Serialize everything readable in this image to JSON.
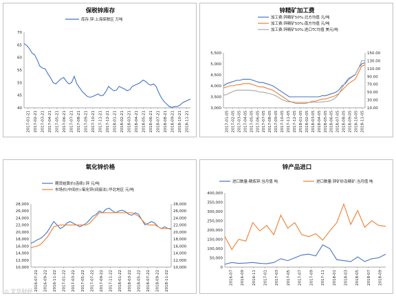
{
  "watermark": "◎ 文华财经",
  "chart_data": [
    {
      "id": "bonded-inventory",
      "type": "line",
      "title": "保税锌库存",
      "legend": [
        "库存:锌:上海保税区 万吨"
      ],
      "legend_position": "top",
      "ylim": [
        40,
        70
      ],
      "yticks": [
        40,
        45,
        50,
        55,
        60,
        65,
        70
      ],
      "xticks": [
        "2017-01-21",
        "2017-02-21",
        "2017-03-21",
        "2017-04-21",
        "2017-05-21",
        "2017-06-21",
        "2017-07-21",
        "2017-08-21",
        "2017-09-21",
        "2017-10-21",
        "2017-11-21",
        "2017-12-21",
        "2018-01-21",
        "2018-02-21",
        "2018-03-21",
        "2018-04-21",
        "2018-05-21",
        "2018-06-21",
        "2018-07-21",
        "2018-08-21",
        "2018-09-21",
        "2018-10-21",
        "2018-11-21"
      ],
      "grid": false,
      "series": [
        {
          "name": "库存:锌:上海保税区 万吨",
          "color": "#4472c4",
          "values": [
            65.5,
            64.8,
            63.5,
            61.8,
            61.0,
            59.0,
            56.5,
            55.8,
            55.5,
            53.5,
            52.0,
            50.0,
            49.5,
            50.5,
            51.5,
            52.0,
            50.5,
            49.5,
            50.0,
            52.5,
            49.5,
            48.0,
            46.5,
            45.5,
            44.5,
            44.2,
            44.5,
            45.0,
            45.5,
            44.8,
            45.0,
            46.5,
            48.5,
            47.5,
            46.8,
            47.0,
            48.5,
            48.0,
            47.5,
            46.8,
            47.2,
            48.5,
            49.0,
            49.5,
            50.0,
            51.0,
            50.5,
            49.5,
            49.0,
            49.5,
            48.5,
            46.0,
            44.0,
            42.5,
            41.5,
            40.5,
            40.2,
            40.5,
            40.5,
            41.0,
            42.0,
            42.5,
            43.0,
            43.5
          ]
        }
      ]
    },
    {
      "id": "concentrate-tc",
      "type": "line",
      "title": "锌精矿加工费",
      "legend": [
        "加工费:锌精矿50%:北方均值 元/吨",
        "加工费:锌精矿50%:南方均值 元/吨",
        "加工费:锌精矿50%:进口TC均值 美元/吨"
      ],
      "legend_position": "top",
      "ylim": [
        3000,
        5500
      ],
      "yticks_left": [
        "3,000",
        "3,500",
        "4,000",
        "4,500",
        "5,000",
        "5,500"
      ],
      "ylim_right": [
        10,
        150
      ],
      "yticks_right": [
        "10.00",
        "30.00",
        "50.00",
        "70.00",
        "90.00",
        "110.00",
        "130.00",
        "150.00"
      ],
      "xticks": [
        "2017-01-05",
        "2017-02-05",
        "2017-03-05",
        "2017-04-05",
        "2017-05-05",
        "2017-06-05",
        "2017-07-05",
        "2017-08-05",
        "2017-09-05",
        "2017-10-05",
        "2017-11-05",
        "2017-12-05",
        "2018-01-05",
        "2018-02-05",
        "2018-03-05",
        "2018-04-05",
        "2018-05-05",
        "2018-06-05",
        "2018-07-05",
        "2018-08-05",
        "2018-09-05",
        "2018-10-05",
        "2018-11-05"
      ],
      "grid": false,
      "series": [
        {
          "name": "加工费:锌精矿50%:北方均值 元/吨",
          "color": "#4472c4",
          "axis": "left",
          "values": [
            4000,
            4100,
            4150,
            4200,
            4250,
            4250,
            4300,
            4300,
            4300,
            4250,
            4200,
            4150,
            4150,
            4100,
            4050,
            4000,
            3900,
            3800,
            3700,
            3600,
            3500,
            3500,
            3500,
            3500,
            3500,
            3500,
            3500,
            3500,
            3500,
            3500,
            3550,
            3550,
            3600,
            3650,
            3700,
            3800,
            4000,
            4100,
            4300,
            4400,
            4500,
            4800,
            5000,
            5050
          ]
        },
        {
          "name": "加工费:锌精矿50%:南方均值 元/吨",
          "color": "#ed7d31",
          "axis": "left",
          "values": [
            3900,
            3950,
            4000,
            4000,
            4050,
            4050,
            4100,
            4100,
            4100,
            4050,
            4000,
            3950,
            3950,
            3900,
            3850,
            3800,
            3700,
            3600,
            3500,
            3400,
            3300,
            3250,
            3200,
            3200,
            3200,
            3200,
            3250,
            3300,
            3300,
            3350,
            3400,
            3400,
            3450,
            3500,
            3550,
            3650,
            3800,
            3950,
            4100,
            4200,
            4300,
            4600,
            4900,
            4950
          ]
        },
        {
          "name": "加工费:锌精矿50%:进口TC均值 美元/吨",
          "color": "#a6a6a6",
          "axis": "right",
          "values": [
            42,
            44,
            48,
            52,
            55,
            55,
            55,
            55,
            55,
            54,
            53,
            50,
            50,
            48,
            46,
            44,
            40,
            35,
            30,
            27,
            25,
            25,
            24,
            24,
            24,
            24,
            24,
            24,
            24,
            24,
            25,
            26,
            27,
            30,
            35,
            45,
            60,
            75,
            85,
            90,
            95,
            110,
            130,
            130
          ]
        }
      ]
    },
    {
      "id": "zinc-oxide-price",
      "type": "line",
      "title": "氧化锌价格",
      "legend": [
        "期货结算价(连续):锌 元/吨",
        "市场价(中间价):氧化锌(间接法):华北地区 元/吨"
      ],
      "legend_position": "top",
      "ylim": [
        10000,
        28000
      ],
      "yticks_left": [
        "10,000",
        "12,000",
        "14,000",
        "16,000",
        "18,000",
        "20,000",
        "22,000",
        "24,000",
        "26,000",
        "28,000"
      ],
      "ylim_right": [
        10000,
        28000
      ],
      "yticks_right": [
        "10,000",
        "12,000",
        "14,000",
        "16,000",
        "18,000",
        "20,000",
        "22,000",
        "24,000",
        "26,000",
        "28,000"
      ],
      "xticks": [
        "2016-07-22",
        "2016-09-22",
        "2016-11-22",
        "2017-01-22",
        "2017-03-22",
        "2017-05-22",
        "2017-07-22",
        "2017-09-22",
        "2017-11-22",
        "2018-01-22",
        "2018-03-22",
        "2018-05-22",
        "2018-07-22",
        "2018-09-22",
        "2018-11-22"
      ],
      "grid": false,
      "series": [
        {
          "name": "期货结算价(连续):锌 元/吨",
          "color": "#4472c4",
          "axis": "left",
          "values": [
            16800,
            17200,
            17800,
            18200,
            19000,
            20000,
            21500,
            23000,
            22000,
            21000,
            21500,
            22500,
            23000,
            22500,
            22000,
            21500,
            22000,
            22500,
            23500,
            24500,
            25000,
            26000,
            25500,
            26500,
            26800,
            26000,
            25500,
            26000,
            26200,
            25800,
            25000,
            24800,
            25500,
            25000,
            23500,
            22000,
            22500,
            23000,
            22500,
            21500,
            21000,
            21500,
            21000,
            20800
          ]
        },
        {
          "name": "市场价(中间价):氧化锌(间接法):华北地区 元/吨",
          "color": "#ed7d31",
          "axis": "right",
          "values": [
            15500,
            15800,
            16000,
            16500,
            17500,
            18500,
            20000,
            21500,
            21800,
            22000,
            22000,
            22000,
            22000,
            22000,
            22000,
            22000,
            22000,
            22000,
            22500,
            23500,
            24500,
            25500,
            25500,
            25500,
            25500,
            25500,
            25500,
            25500,
            25500,
            25500,
            25500,
            25500,
            25000,
            24500,
            23500,
            22500,
            22000,
            22000,
            22000,
            21500,
            21000,
            21000,
            21000,
            21000
          ]
        }
      ]
    },
    {
      "id": "zinc-imports",
      "type": "line",
      "title": "锌产品进口",
      "legend": [
        "进口数量:精炼锌:当月值 吨",
        "进口数量:锌矿砂及精矿:当月值 吨"
      ],
      "legend_position": "top",
      "ylim": [
        0,
        400000
      ],
      "yticks": [
        "0",
        "50,000",
        "100,000",
        "150,000",
        "200,000",
        "250,000",
        "300,000",
        "350,000",
        "400,000"
      ],
      "xticks": [
        "2016-07",
        "2016-09",
        "2016-11",
        "2017-01",
        "2017-03",
        "2017-05",
        "2017-07",
        "2017-09",
        "2017-11",
        "2018-01",
        "2018-03",
        "2018-05",
        "2018-07",
        "2018-09"
      ],
      "grid": false,
      "series": [
        {
          "name": "进口数量:精炼锌:当月值 吨",
          "color": "#4472c4",
          "values": [
            15000,
            25000,
            20000,
            22000,
            25000,
            20000,
            18000,
            25000,
            45000,
            35000,
            50000,
            65000,
            70000,
            60000,
            120000,
            100000,
            40000,
            35000,
            30000,
            55000,
            30000,
            45000,
            50000,
            70000
          ]
        },
        {
          "name": "进口数量:锌矿砂及精矿:当月值 吨",
          "color": "#ed7d31",
          "values": [
            165000,
            95000,
            150000,
            140000,
            240000,
            195000,
            225000,
            175000,
            280000,
            210000,
            240000,
            175000,
            165000,
            180000,
            145000,
            195000,
            240000,
            340000,
            230000,
            305000,
            215000,
            250000,
            225000,
            220000
          ]
        }
      ]
    }
  ]
}
